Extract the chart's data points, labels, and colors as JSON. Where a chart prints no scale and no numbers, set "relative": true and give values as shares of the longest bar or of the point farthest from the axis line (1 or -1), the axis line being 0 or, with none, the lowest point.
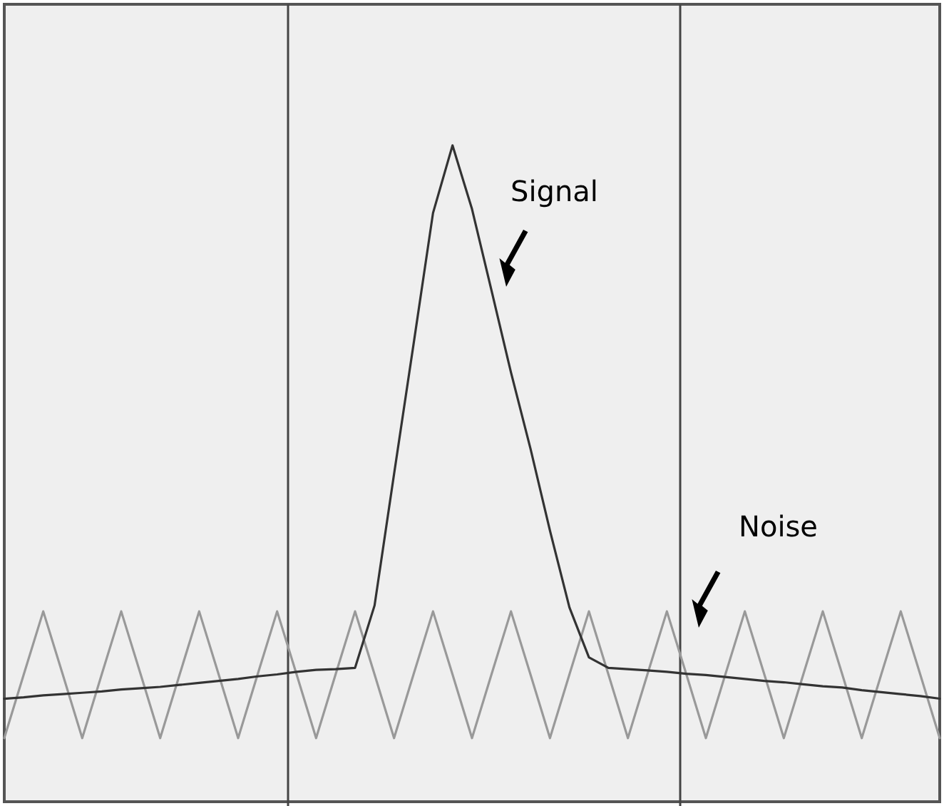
{
  "chart_data": {
    "type": "line",
    "relative": true,
    "categories": [
      null,
      null,
      null,
      null,
      null,
      null,
      null,
      null,
      null,
      null,
      null,
      null,
      null,
      null,
      null,
      null,
      null,
      null,
      null,
      null,
      null,
      null,
      null,
      null,
      null,
      null,
      null,
      null,
      null,
      null,
      null,
      null,
      null,
      null,
      null,
      null,
      null,
      null,
      null,
      null,
      null,
      null,
      null,
      null,
      null,
      null,
      null,
      null,
      null
    ],
    "series": [
      {
        "color": "#999999",
        "values": [
          0.097,
          0.194,
          0.29,
          0.194,
          0.097,
          0.194,
          0.29,
          0.194,
          0.097,
          0.194,
          0.29,
          0.194,
          0.097,
          0.194,
          0.29,
          0.194,
          0.097,
          0.194,
          0.29,
          0.194,
          0.097,
          0.194,
          0.29,
          0.194,
          0.097,
          0.194,
          0.29,
          0.194,
          0.097,
          0.194,
          0.29,
          0.194,
          0.097,
          0.194,
          0.29,
          0.194,
          0.097,
          0.194,
          0.29,
          0.194,
          0.097,
          0.194,
          0.29,
          0.194,
          0.097,
          0.194,
          0.29,
          0.194,
          0.097
        ]
      },
      {
        "color": "#333333",
        "values": [
          0.157,
          0.159,
          0.162,
          0.164,
          0.166,
          0.168,
          0.171,
          0.173,
          0.175,
          0.178,
          0.181,
          0.184,
          0.187,
          0.191,
          0.194,
          0.198,
          0.201,
          0.202,
          0.204,
          0.299,
          0.499,
          0.697,
          0.897,
          1,
          0.903,
          0.779,
          0.654,
          0.538,
          0.413,
          0.296,
          0.22,
          0.204,
          0.202,
          0.2,
          0.198,
          0.195,
          0.193,
          0.19,
          0.187,
          0.184,
          0.182,
          0.179,
          0.176,
          0.174,
          0.17,
          0.167,
          0.164,
          0.161,
          0.157
        ]
      }
    ],
    "annotations": [
      "Signal",
      "Noise"
    ]
  }
}
